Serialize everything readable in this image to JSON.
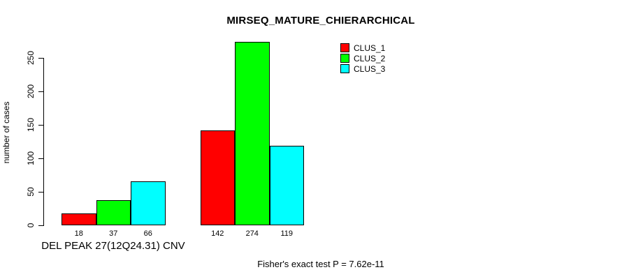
{
  "chart_data": {
    "type": "bar",
    "title": "MIRSEQ_MATURE_CHIERARCHICAL",
    "ylabel": "number of cases",
    "xlabel": "DEL PEAK 27(12Q24.31) CNV",
    "annotation": "Fisher's exact test P = 7.62e-11",
    "ylim": [
      0,
      250
    ],
    "yticks": [
      0,
      50,
      100,
      150,
      200,
      250
    ],
    "grid": false,
    "legend_position": "top-right",
    "groups": [
      "group-1",
      "group-2"
    ],
    "series": [
      {
        "name": "CLUS_1",
        "color": "#FF0000",
        "values": [
          18,
          142
        ]
      },
      {
        "name": "CLUS_2",
        "color": "#00FF00",
        "values": [
          37,
          274
        ]
      },
      {
        "name": "CLUS_3",
        "color": "#00FFFF",
        "values": [
          66,
          119
        ]
      }
    ],
    "bar_value_labels": [
      [
        18,
        37,
        66
      ],
      [
        142,
        274,
        119
      ]
    ]
  }
}
